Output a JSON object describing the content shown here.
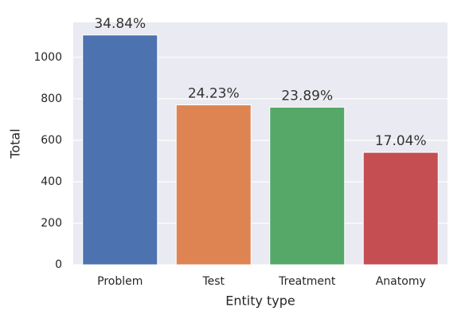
{
  "chart_data": {
    "type": "bar",
    "xlabel": "Entity type",
    "ylabel": "Total",
    "categories": [
      "Problem",
      "Test",
      "Treatment",
      "Anatomy"
    ],
    "values": [
      1108,
      771,
      760,
      542
    ],
    "annotations": [
      "34.84%",
      "24.23%",
      "23.89%",
      "17.04%"
    ],
    "colors": [
      "#4c72b0",
      "#dd8452",
      "#55a868",
      "#c44e52"
    ],
    "ylim": [
      0,
      1169
    ],
    "yticks": [
      0,
      200,
      400,
      600,
      800,
      1000
    ],
    "grid": true
  }
}
